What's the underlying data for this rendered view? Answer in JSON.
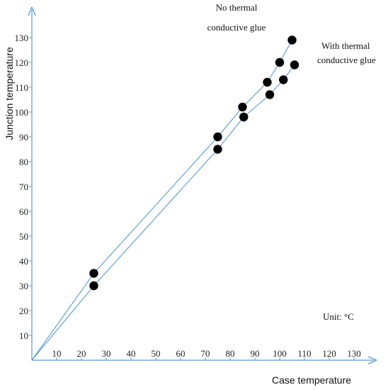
{
  "chart_data": {
    "type": "scatter",
    "xlabel": "Case temperature",
    "ylabel": "Junction temperature",
    "xlim": [
      0,
      135
    ],
    "ylim": [
      0,
      140
    ],
    "x_ticks": [
      10,
      20,
      30,
      40,
      50,
      60,
      70,
      80,
      90,
      100,
      110,
      120,
      130
    ],
    "y_ticks": [
      10,
      20,
      30,
      40,
      50,
      60,
      70,
      80,
      90,
      100,
      110,
      120,
      130
    ],
    "grid": false,
    "line_color": "#5b9bd5",
    "point_color": "#000000",
    "series": [
      {
        "name": "No thermal conductive glue",
        "points": [
          [
            25,
            35
          ],
          [
            75,
            90
          ],
          [
            85,
            102
          ],
          [
            95,
            112
          ],
          [
            100,
            120
          ],
          [
            105,
            129
          ]
        ]
      },
      {
        "name": "With thermal conductive glue",
        "points": [
          [
            25,
            30
          ],
          [
            75,
            85
          ],
          [
            85.5,
            98
          ],
          [
            96,
            107
          ],
          [
            101.5,
            113
          ],
          [
            106,
            119
          ]
        ]
      }
    ],
    "annotations": {
      "series1_line1": "No thermal",
      "series1_line2": "conductive  glue",
      "series2_line1": "With thermal",
      "series2_line2": "conductive glue",
      "unit": "Unit: °C"
    }
  }
}
